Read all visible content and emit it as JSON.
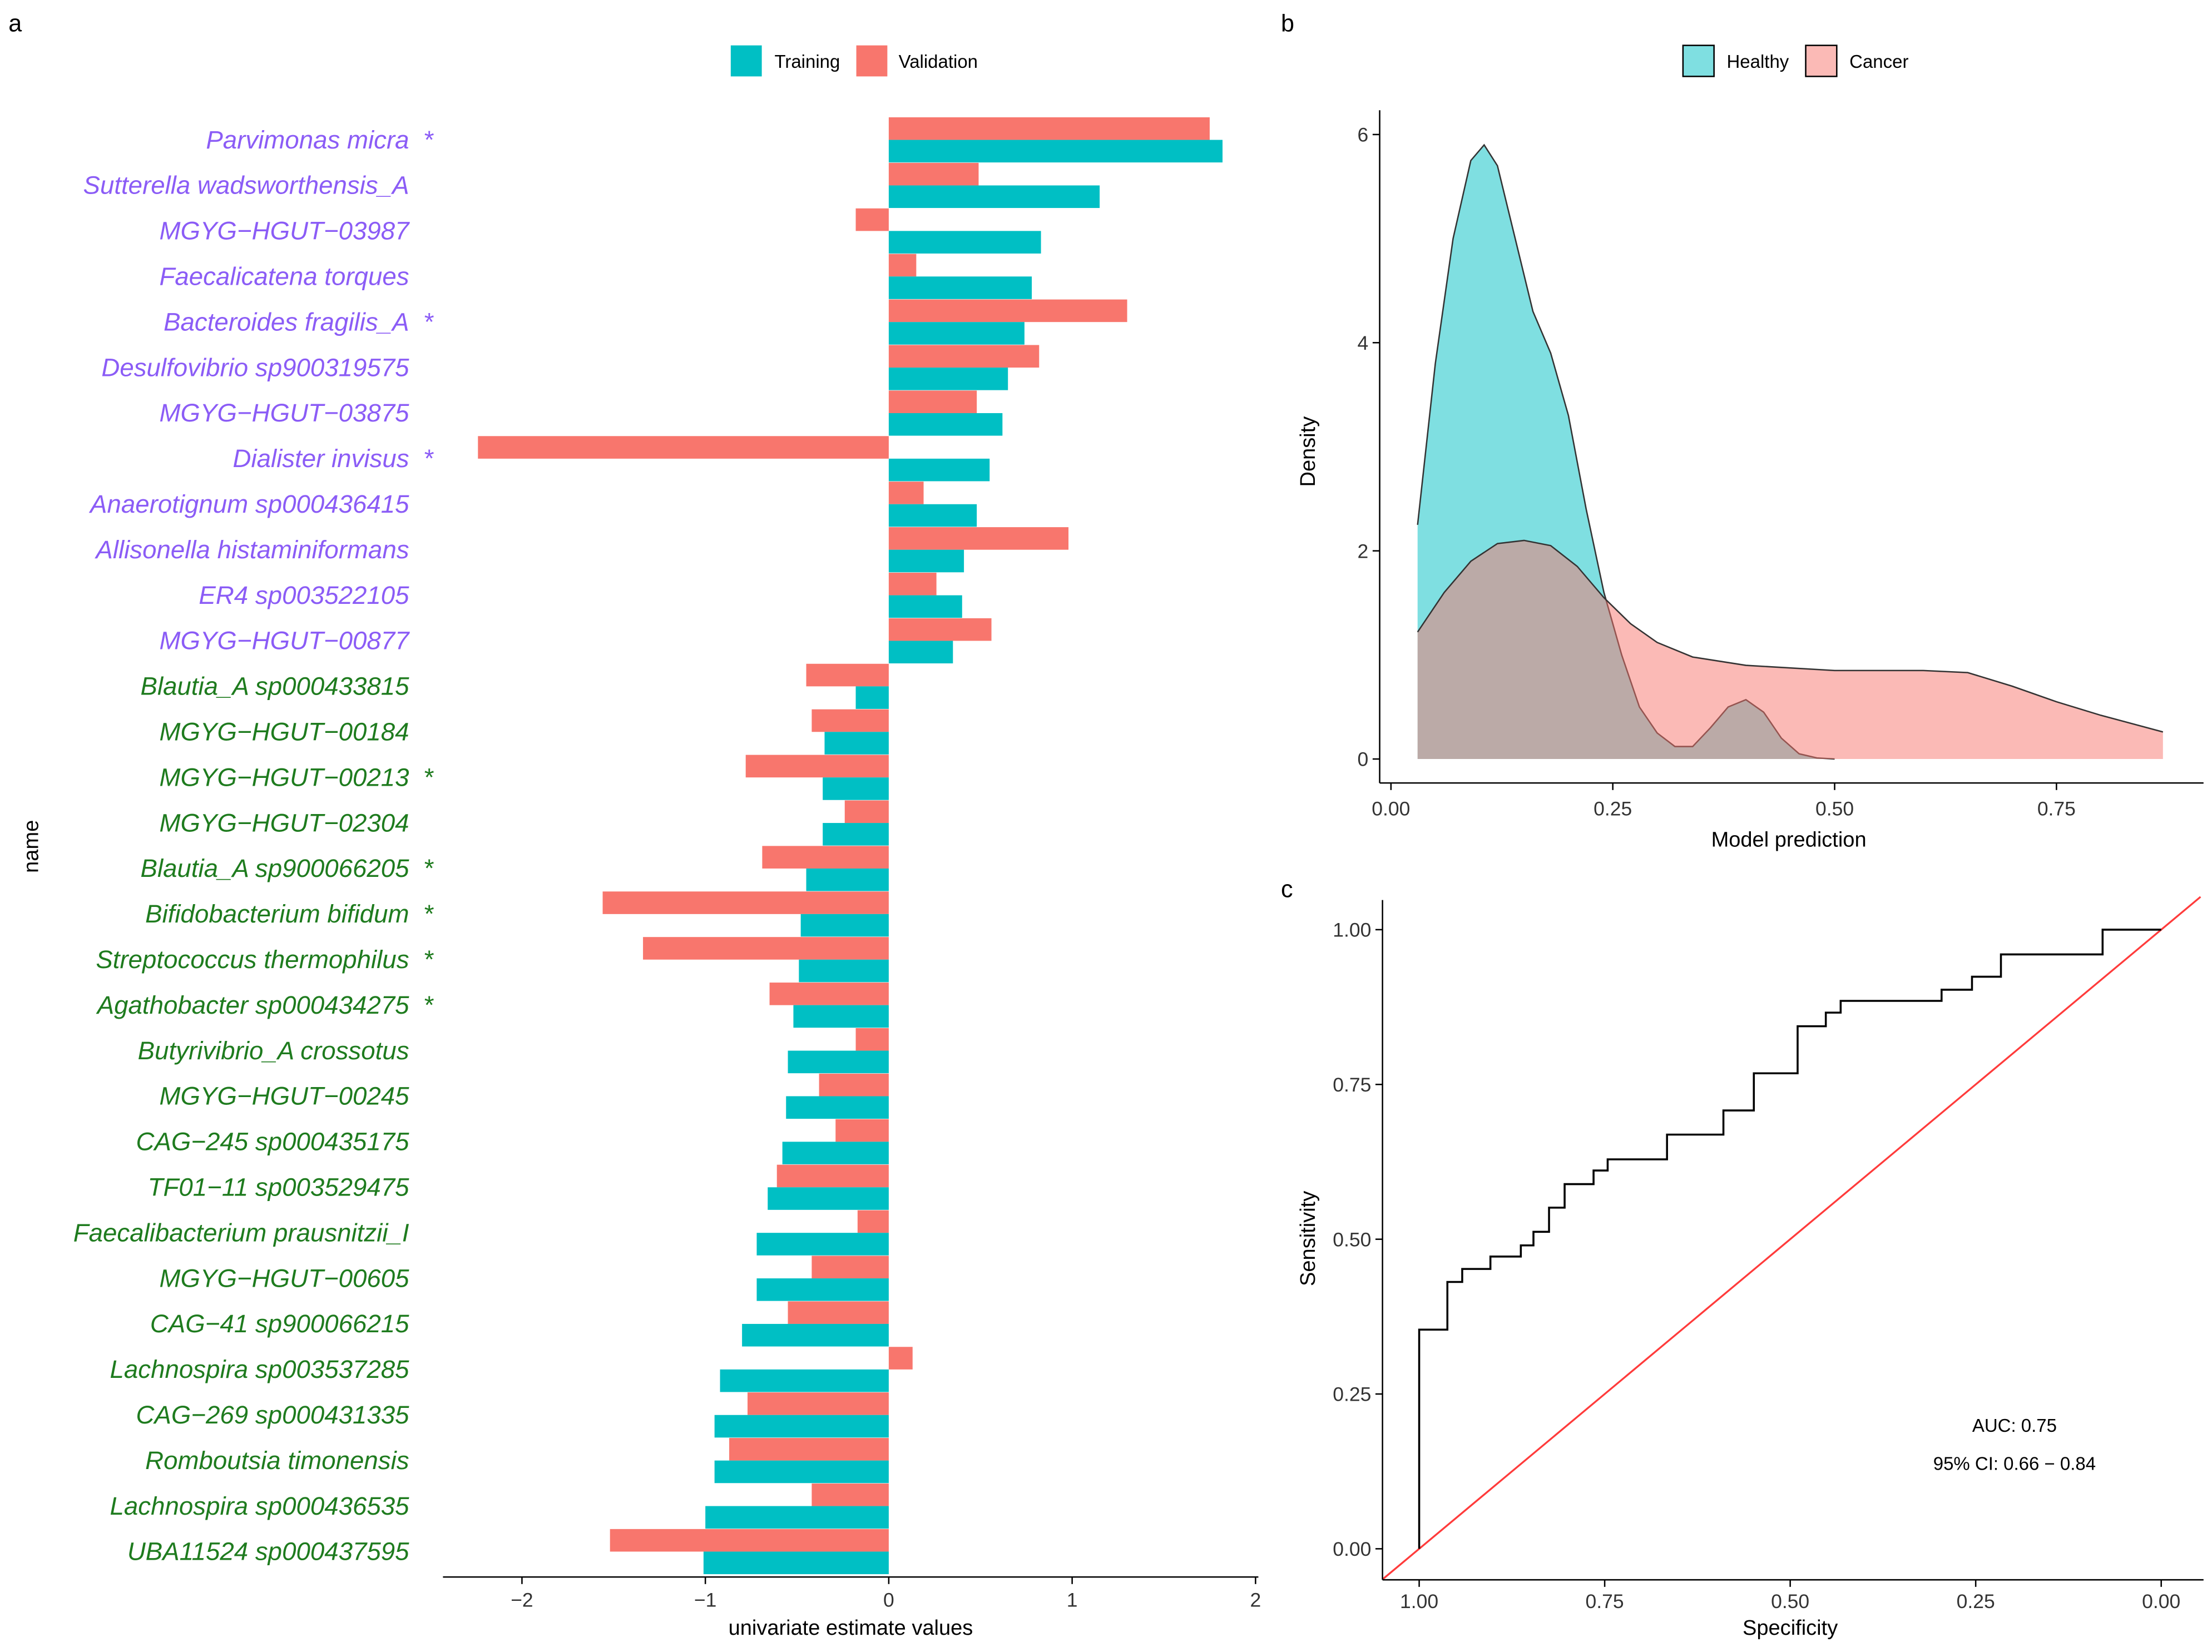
{
  "colors": {
    "training": "#00BFC4",
    "validation": "#F8766D",
    "positive_label": "#8B5CF6",
    "negative_label": "#1E7B1E",
    "roc_line": "#000000",
    "diagonal": "#FF3B3B"
  },
  "chart_data": [
    {
      "panel": "a",
      "type": "bar",
      "orientation": "horizontal",
      "xlabel": "univariate estimate values",
      "ylabel": "name",
      "xlim": [
        -2.45,
        2.0
      ],
      "xticks": [
        -2,
        -1,
        0,
        1,
        2
      ],
      "legend": {
        "position": "top",
        "entries": [
          "Training",
          "Validation"
        ]
      },
      "categories": [
        {
          "name": "Parvimonas micra",
          "star": true,
          "group": "positive"
        },
        {
          "name": "Sutterella wadsworthensis_A",
          "star": false,
          "group": "positive"
        },
        {
          "name": "MGYG−HGUT−03987",
          "star": false,
          "group": "positive"
        },
        {
          "name": "Faecalicatena torques",
          "star": false,
          "group": "positive"
        },
        {
          "name": "Bacteroides fragilis_A",
          "star": true,
          "group": "positive"
        },
        {
          "name": "Desulfovibrio sp900319575",
          "star": false,
          "group": "positive"
        },
        {
          "name": "MGYG−HGUT−03875",
          "star": false,
          "group": "positive"
        },
        {
          "name": "Dialister invisus",
          "star": true,
          "group": "positive"
        },
        {
          "name": "Anaerotignum sp000436415",
          "star": false,
          "group": "positive"
        },
        {
          "name": "Allisonella histaminiformans",
          "star": false,
          "group": "positive"
        },
        {
          "name": "ER4 sp003522105",
          "star": false,
          "group": "positive"
        },
        {
          "name": "MGYG−HGUT−00877",
          "star": false,
          "group": "positive"
        },
        {
          "name": "Blautia_A sp000433815",
          "star": false,
          "group": "negative"
        },
        {
          "name": "MGYG−HGUT−00184",
          "star": false,
          "group": "negative"
        },
        {
          "name": "MGYG−HGUT−00213",
          "star": true,
          "group": "negative"
        },
        {
          "name": "MGYG−HGUT−02304",
          "star": false,
          "group": "negative"
        },
        {
          "name": "Blautia_A sp900066205",
          "star": true,
          "group": "negative"
        },
        {
          "name": "Bifidobacterium bifidum",
          "star": true,
          "group": "negative"
        },
        {
          "name": "Streptococcus thermophilus",
          "star": true,
          "group": "negative"
        },
        {
          "name": "Agathobacter sp000434275",
          "star": true,
          "group": "negative"
        },
        {
          "name": "Butyrivibrio_A crossotus",
          "star": false,
          "group": "negative"
        },
        {
          "name": "MGYG−HGUT−00245",
          "star": false,
          "group": "negative"
        },
        {
          "name": "CAG−245 sp000435175",
          "star": false,
          "group": "negative"
        },
        {
          "name": "TF01−11 sp003529475",
          "star": false,
          "group": "negative"
        },
        {
          "name": "Faecalibacterium prausnitzii_I",
          "star": false,
          "group": "negative"
        },
        {
          "name": "MGYG−HGUT−00605",
          "star": false,
          "group": "negative"
        },
        {
          "name": "CAG−41 sp900066215",
          "star": false,
          "group": "negative"
        },
        {
          "name": "Lachnospira sp003537285",
          "star": false,
          "group": "negative"
        },
        {
          "name": "CAG−269 sp000431335",
          "star": false,
          "group": "negative"
        },
        {
          "name": "Romboutsia timonensis",
          "star": false,
          "group": "negative"
        },
        {
          "name": "Lachnospira sp000436535",
          "star": false,
          "group": "negative"
        },
        {
          "name": "UBA11524 sp000437595",
          "star": false,
          "group": "negative"
        }
      ],
      "star_symbol": "*",
      "series": [
        {
          "name": "Training",
          "values": [
            1.82,
            1.15,
            0.83,
            0.78,
            0.74,
            0.65,
            0.62,
            0.55,
            0.48,
            0.41,
            0.4,
            0.35,
            -0.18,
            -0.35,
            -0.36,
            -0.36,
            -0.45,
            -0.48,
            -0.49,
            -0.52,
            -0.55,
            -0.56,
            -0.58,
            -0.66,
            -0.72,
            -0.72,
            -0.8,
            -0.92,
            -0.95,
            -0.95,
            -1.0,
            -1.01
          ]
        },
        {
          "name": "Validation",
          "values": [
            1.75,
            0.49,
            -0.18,
            0.15,
            1.3,
            0.82,
            0.48,
            -2.24,
            0.19,
            0.98,
            0.26,
            0.56,
            -0.45,
            -0.42,
            -0.78,
            -0.24,
            -0.69,
            -1.56,
            -1.34,
            -0.65,
            -0.18,
            -0.38,
            -0.29,
            -0.61,
            -0.17,
            -0.42,
            -0.55,
            0.13,
            -0.77,
            -0.87,
            -0.42,
            -1.52
          ]
        }
      ]
    },
    {
      "panel": "b",
      "type": "area",
      "subtype": "density",
      "xlabel": "Model prediction",
      "ylabel": "Density",
      "xlim": [
        -0.01,
        0.91
      ],
      "ylim": [
        -0.25,
        6.5
      ],
      "xticks": [
        "0.00",
        "0.25",
        "0.50",
        "0.75"
      ],
      "yticks": [
        "0",
        "2",
        "4",
        "6"
      ],
      "legend": {
        "position": "top",
        "entries": [
          "Healthy",
          "Cancer"
        ]
      },
      "series": [
        {
          "name": "Healthy",
          "x": [
            0.03,
            0.05,
            0.07,
            0.09,
            0.105,
            0.12,
            0.14,
            0.16,
            0.18,
            0.2,
            0.22,
            0.24,
            0.26,
            0.28,
            0.3,
            0.32,
            0.34,
            0.36,
            0.38,
            0.4,
            0.42,
            0.44,
            0.46,
            0.48,
            0.5
          ],
          "y": [
            2.25,
            3.8,
            5.0,
            5.75,
            5.9,
            5.7,
            5.0,
            4.3,
            3.9,
            3.3,
            2.4,
            1.6,
            1.0,
            0.5,
            0.25,
            0.12,
            0.12,
            0.3,
            0.5,
            0.57,
            0.45,
            0.2,
            0.05,
            0.01,
            0
          ]
        },
        {
          "name": "Cancer",
          "x": [
            0.03,
            0.06,
            0.09,
            0.12,
            0.15,
            0.18,
            0.21,
            0.24,
            0.27,
            0.3,
            0.34,
            0.4,
            0.5,
            0.6,
            0.65,
            0.7,
            0.75,
            0.8,
            0.87
          ],
          "y": [
            1.22,
            1.6,
            1.9,
            2.07,
            2.1,
            2.05,
            1.85,
            1.55,
            1.3,
            1.12,
            0.98,
            0.9,
            0.85,
            0.85,
            0.83,
            0.7,
            0.55,
            0.42,
            0.26
          ]
        }
      ]
    },
    {
      "panel": "c",
      "type": "line",
      "subtype": "roc",
      "xlabel": "Specificity",
      "ylabel": "Sensitivity",
      "xlim": [
        1.05,
        -0.05
      ],
      "ylim": [
        -0.05,
        1.05
      ],
      "xticks": [
        "1.00",
        "0.75",
        "0.50",
        "0.25",
        "0.00"
      ],
      "yticks": [
        "0.00",
        "0.25",
        "0.50",
        "0.75",
        "1.00"
      ],
      "roc_steps": {
        "specificity": [
          1.0,
          0.962,
          0.942,
          0.904,
          0.863,
          0.846,
          0.825,
          0.804,
          0.765,
          0.746,
          0.666,
          0.59,
          0.549,
          0.49,
          0.452,
          0.432,
          0.296,
          0.255,
          0.216,
          0.079,
          0.0
        ],
        "sensitivity": [
          0.354,
          0.431,
          0.452,
          0.472,
          0.49,
          0.512,
          0.551,
          0.589,
          0.611,
          0.629,
          0.669,
          0.708,
          0.768,
          0.844,
          0.866,
          0.885,
          0.903,
          0.924,
          0.96,
          1.0,
          1.0
        ]
      },
      "annotations": {
        "auc": "AUC: 0.75",
        "ci": "95% CI: 0.66 − 0.84"
      }
    }
  ],
  "panel_labels": {
    "a": "a",
    "b": "b",
    "c": "c"
  }
}
